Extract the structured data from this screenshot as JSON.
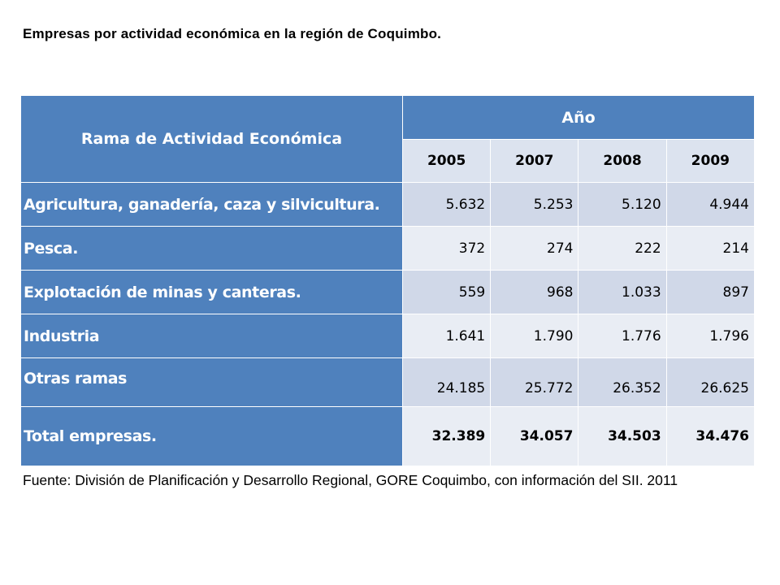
{
  "title": "Empresas por actividad económica en la región de Coquimbo.",
  "table": {
    "header_label": "Rama de Actividad Económica",
    "header_group": "Año",
    "years": [
      "2005",
      "2007",
      "2008",
      "2009"
    ],
    "rows": [
      {
        "label": "Agricultura, ganadería, caza y silvicultura.",
        "values": [
          "5.632",
          "5.253",
          "5.120",
          "4.944"
        ]
      },
      {
        "label": "Pesca.",
        "values": [
          "372",
          "274",
          "222",
          "214"
        ]
      },
      {
        "label": "Explotación de minas y canteras.",
        "values": [
          "559",
          "968",
          "1.033",
          "897"
        ]
      },
      {
        "label": "Industria",
        "values": [
          "1.641",
          "1.790",
          "1.776",
          "1.796"
        ]
      },
      {
        "label": "Otras ramas",
        "values": [
          "24.185",
          "25.772",
          "26.352",
          "26.625"
        ]
      },
      {
        "label": "Total empresas.",
        "values": [
          "32.389",
          "34.057",
          "34.503",
          "34.476"
        ]
      }
    ]
  },
  "source": "Fuente: División de Planificación y Desarrollo Regional, GORE Coquimbo, con información del SII. 2011",
  "colors": {
    "header_blue": "#4f81bd",
    "row_light": "#d0d8e8",
    "row_lighter": "#e9edf4"
  }
}
